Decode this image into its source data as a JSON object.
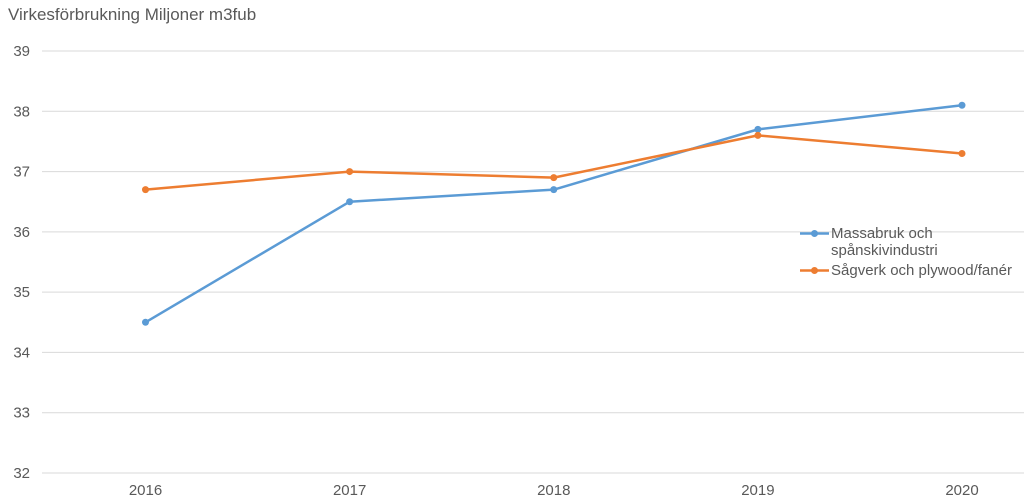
{
  "colors": {
    "text": "#595959",
    "gridline": "#D9D9D9",
    "background": "#FFFFFF"
  },
  "chart_data": {
    "type": "line",
    "title": "Virkesförbrukning Miljoner m3fub",
    "categories": [
      "2016",
      "2017",
      "2018",
      "2019",
      "2020"
    ],
    "series": [
      {
        "name": "Massabruk och spånskivindustri",
        "color": "#5B9BD5",
        "values": [
          34.5,
          36.5,
          36.7,
          37.7,
          38.1
        ]
      },
      {
        "name": "Sågverk och plywood/fanér",
        "color": "#ED7D31",
        "values": [
          36.7,
          37.0,
          36.9,
          37.6,
          37.3
        ]
      }
    ],
    "ylim": [
      32,
      39
    ],
    "ytick_step": 1,
    "ytick_labels": [
      "32",
      "33",
      "34",
      "35",
      "36",
      "37",
      "38",
      "39"
    ],
    "grid": "horizontal-only",
    "legend_position": "right-inside",
    "markers": true,
    "xlabel": "",
    "ylabel": ""
  }
}
